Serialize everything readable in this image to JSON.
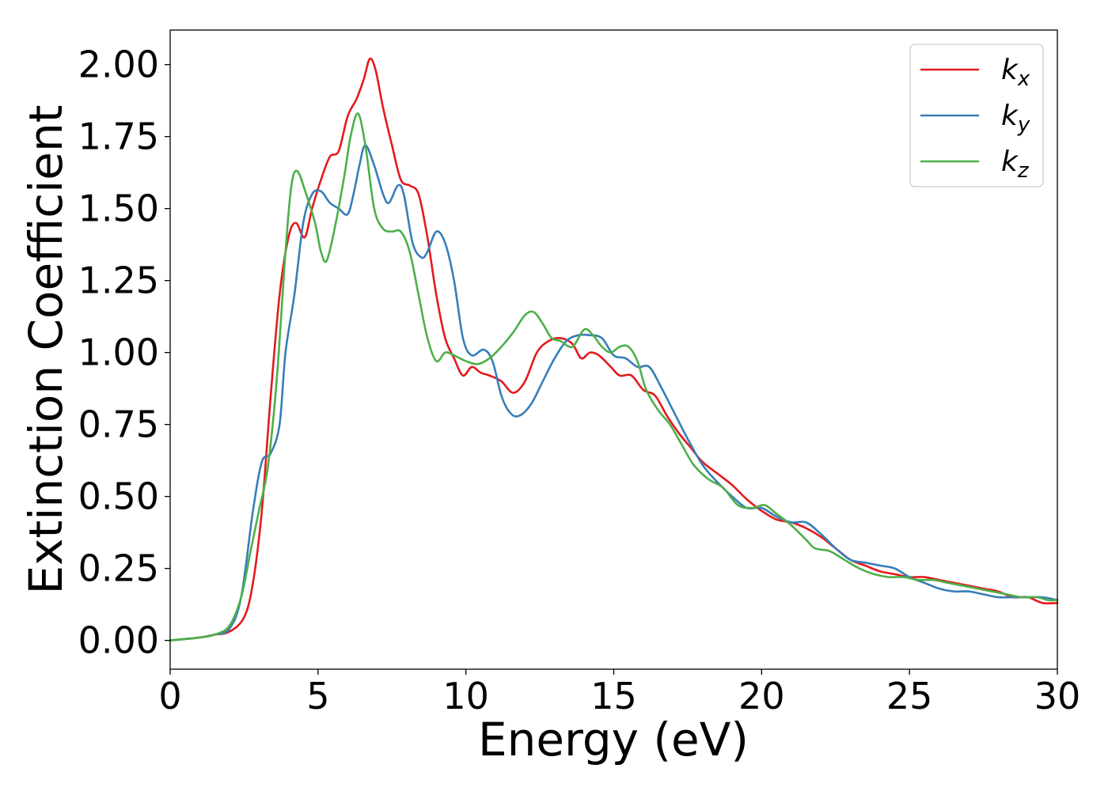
{
  "chart_data": {
    "type": "line",
    "title": "",
    "xlabel": "Energy (eV)",
    "ylabel": "Extinction Coefficient",
    "xlim": [
      0,
      30
    ],
    "ylim": [
      -0.1,
      2.12
    ],
    "x_ticks": [
      0,
      5,
      10,
      15,
      20,
      25,
      30
    ],
    "x_tick_labels": [
      "0",
      "5",
      "10",
      "15",
      "20",
      "25",
      "30"
    ],
    "y_ticks": [
      0,
      0.25,
      0.5,
      0.75,
      1.0,
      1.25,
      1.5,
      1.75,
      2.0
    ],
    "y_tick_labels": [
      "0.00",
      "0.25",
      "0.50",
      "0.75",
      "1.00",
      "1.25",
      "1.50",
      "1.75",
      "2.00"
    ],
    "grid": false,
    "legend_position": "top-right",
    "series": [
      {
        "name": "k",
        "name_sub": "x",
        "color": "#e41a1c",
        "points": [
          [
            0,
            0
          ],
          [
            1,
            0.01
          ],
          [
            1.5,
            0.02
          ],
          [
            2,
            0.03
          ],
          [
            2.5,
            0.08
          ],
          [
            2.8,
            0.2
          ],
          [
            3.1,
            0.45
          ],
          [
            3.4,
            0.85
          ],
          [
            3.7,
            1.2
          ],
          [
            4,
            1.4
          ],
          [
            4.25,
            1.45
          ],
          [
            4.55,
            1.4
          ],
          [
            4.8,
            1.5
          ],
          [
            5.1,
            1.6
          ],
          [
            5.4,
            1.68
          ],
          [
            5.7,
            1.7
          ],
          [
            6,
            1.82
          ],
          [
            6.3,
            1.88
          ],
          [
            6.55,
            1.95
          ],
          [
            6.75,
            2.02
          ],
          [
            6.95,
            1.98
          ],
          [
            7.2,
            1.85
          ],
          [
            7.5,
            1.72
          ],
          [
            7.8,
            1.6
          ],
          [
            8.1,
            1.58
          ],
          [
            8.4,
            1.55
          ],
          [
            8.7,
            1.4
          ],
          [
            9,
            1.2
          ],
          [
            9.3,
            1.05
          ],
          [
            9.6,
            0.98
          ],
          [
            9.9,
            0.92
          ],
          [
            10.2,
            0.95
          ],
          [
            10.5,
            0.93
          ],
          [
            10.8,
            0.92
          ],
          [
            11.2,
            0.9
          ],
          [
            11.6,
            0.86
          ],
          [
            12,
            0.9
          ],
          [
            12.4,
            1.0
          ],
          [
            12.8,
            1.04
          ],
          [
            13.2,
            1.05
          ],
          [
            13.6,
            1.03
          ],
          [
            13.9,
            0.98
          ],
          [
            14.2,
            1.0
          ],
          [
            14.5,
            0.99
          ],
          [
            14.9,
            0.95
          ],
          [
            15.2,
            0.92
          ],
          [
            15.6,
            0.92
          ],
          [
            16,
            0.87
          ],
          [
            16.4,
            0.85
          ],
          [
            16.8,
            0.78
          ],
          [
            17.2,
            0.72
          ],
          [
            17.6,
            0.67
          ],
          [
            18,
            0.62
          ],
          [
            18.5,
            0.58
          ],
          [
            19,
            0.54
          ],
          [
            19.5,
            0.49
          ],
          [
            20,
            0.45
          ],
          [
            20.5,
            0.42
          ],
          [
            21,
            0.41
          ],
          [
            21.5,
            0.39
          ],
          [
            22,
            0.36
          ],
          [
            22.5,
            0.32
          ],
          [
            23,
            0.28
          ],
          [
            23.5,
            0.26
          ],
          [
            24,
            0.24
          ],
          [
            24.5,
            0.23
          ],
          [
            25,
            0.22
          ],
          [
            25.5,
            0.22
          ],
          [
            26,
            0.21
          ],
          [
            26.5,
            0.2
          ],
          [
            27,
            0.19
          ],
          [
            27.5,
            0.18
          ],
          [
            28,
            0.17
          ],
          [
            28.5,
            0.15
          ],
          [
            29,
            0.15
          ],
          [
            29.5,
            0.13
          ],
          [
            30,
            0.13
          ]
        ]
      },
      {
        "name": "k",
        "name_sub": "y",
        "color": "#377eb8",
        "points": [
          [
            0,
            0
          ],
          [
            1,
            0.01
          ],
          [
            1.5,
            0.02
          ],
          [
            2,
            0.04
          ],
          [
            2.4,
            0.15
          ],
          [
            2.8,
            0.45
          ],
          [
            3.1,
            0.62
          ],
          [
            3.4,
            0.65
          ],
          [
            3.7,
            0.75
          ],
          [
            3.9,
            1.0
          ],
          [
            4.2,
            1.2
          ],
          [
            4.5,
            1.45
          ],
          [
            4.8,
            1.55
          ],
          [
            5.1,
            1.56
          ],
          [
            5.4,
            1.52
          ],
          [
            5.7,
            1.5
          ],
          [
            6,
            1.48
          ],
          [
            6.2,
            1.55
          ],
          [
            6.4,
            1.65
          ],
          [
            6.6,
            1.72
          ],
          [
            6.9,
            1.65
          ],
          [
            7.2,
            1.55
          ],
          [
            7.4,
            1.52
          ],
          [
            7.7,
            1.58
          ],
          [
            7.9,
            1.55
          ],
          [
            8.2,
            1.38
          ],
          [
            8.5,
            1.33
          ],
          [
            8.7,
            1.35
          ],
          [
            9,
            1.42
          ],
          [
            9.3,
            1.38
          ],
          [
            9.6,
            1.25
          ],
          [
            9.9,
            1.05
          ],
          [
            10.2,
            0.99
          ],
          [
            10.6,
            1.01
          ],
          [
            10.9,
            0.97
          ],
          [
            11.2,
            0.85
          ],
          [
            11.5,
            0.79
          ],
          [
            11.8,
            0.78
          ],
          [
            12.2,
            0.82
          ],
          [
            12.6,
            0.9
          ],
          [
            13,
            0.98
          ],
          [
            13.4,
            1.04
          ],
          [
            13.8,
            1.06
          ],
          [
            14.2,
            1.06
          ],
          [
            14.6,
            1.05
          ],
          [
            15,
            0.99
          ],
          [
            15.4,
            0.98
          ],
          [
            15.8,
            0.95
          ],
          [
            16.2,
            0.95
          ],
          [
            16.6,
            0.88
          ],
          [
            17,
            0.8
          ],
          [
            17.5,
            0.7
          ],
          [
            18,
            0.61
          ],
          [
            18.5,
            0.55
          ],
          [
            19,
            0.5
          ],
          [
            19.5,
            0.46
          ],
          [
            20,
            0.46
          ],
          [
            20.5,
            0.43
          ],
          [
            21,
            0.41
          ],
          [
            21.5,
            0.41
          ],
          [
            22,
            0.37
          ],
          [
            22.5,
            0.32
          ],
          [
            23,
            0.28
          ],
          [
            23.5,
            0.27
          ],
          [
            24,
            0.26
          ],
          [
            24.5,
            0.25
          ],
          [
            25,
            0.22
          ],
          [
            25.5,
            0.2
          ],
          [
            26,
            0.18
          ],
          [
            26.5,
            0.17
          ],
          [
            27,
            0.17
          ],
          [
            27.5,
            0.16
          ],
          [
            28,
            0.15
          ],
          [
            28.5,
            0.15
          ],
          [
            29,
            0.15
          ],
          [
            29.5,
            0.15
          ],
          [
            30,
            0.14
          ]
        ]
      },
      {
        "name": "k",
        "name_sub": "z",
        "color": "#4daf4a",
        "points": [
          [
            0,
            0
          ],
          [
            1,
            0.01
          ],
          [
            1.5,
            0.02
          ],
          [
            2,
            0.05
          ],
          [
            2.4,
            0.15
          ],
          [
            2.7,
            0.3
          ],
          [
            3,
            0.45
          ],
          [
            3.3,
            0.6
          ],
          [
            3.6,
            0.9
          ],
          [
            3.9,
            1.35
          ],
          [
            4.1,
            1.58
          ],
          [
            4.3,
            1.63
          ],
          [
            4.6,
            1.55
          ],
          [
            4.9,
            1.45
          ],
          [
            5.1,
            1.35
          ],
          [
            5.3,
            1.32
          ],
          [
            5.6,
            1.45
          ],
          [
            5.9,
            1.62
          ],
          [
            6.1,
            1.75
          ],
          [
            6.35,
            1.83
          ],
          [
            6.6,
            1.72
          ],
          [
            6.9,
            1.5
          ],
          [
            7.2,
            1.43
          ],
          [
            7.5,
            1.42
          ],
          [
            7.8,
            1.42
          ],
          [
            8.1,
            1.35
          ],
          [
            8.4,
            1.2
          ],
          [
            8.7,
            1.05
          ],
          [
            9,
            0.97
          ],
          [
            9.3,
            1.0
          ],
          [
            9.6,
            0.99
          ],
          [
            10,
            0.97
          ],
          [
            10.4,
            0.96
          ],
          [
            10.8,
            0.98
          ],
          [
            11.2,
            1.02
          ],
          [
            11.6,
            1.07
          ],
          [
            12,
            1.13
          ],
          [
            12.3,
            1.14
          ],
          [
            12.6,
            1.1
          ],
          [
            12.9,
            1.05
          ],
          [
            13.2,
            1.04
          ],
          [
            13.6,
            1.02
          ],
          [
            14,
            1.08
          ],
          [
            14.3,
            1.06
          ],
          [
            14.6,
            1.02
          ],
          [
            14.9,
            1.0
          ],
          [
            15.2,
            1.02
          ],
          [
            15.5,
            1.02
          ],
          [
            15.8,
            0.97
          ],
          [
            16.1,
            0.87
          ],
          [
            16.5,
            0.8
          ],
          [
            16.9,
            0.75
          ],
          [
            17.3,
            0.68
          ],
          [
            17.7,
            0.61
          ],
          [
            18.2,
            0.56
          ],
          [
            18.7,
            0.53
          ],
          [
            19.2,
            0.47
          ],
          [
            19.7,
            0.46
          ],
          [
            20.1,
            0.47
          ],
          [
            20.5,
            0.44
          ],
          [
            21,
            0.4
          ],
          [
            21.5,
            0.35
          ],
          [
            21.8,
            0.32
          ],
          [
            22.3,
            0.31
          ],
          [
            22.8,
            0.28
          ],
          [
            23.3,
            0.25
          ],
          [
            23.8,
            0.23
          ],
          [
            24.3,
            0.22
          ],
          [
            24.8,
            0.22
          ],
          [
            25.3,
            0.21
          ],
          [
            25.8,
            0.21
          ],
          [
            26.3,
            0.2
          ],
          [
            26.8,
            0.19
          ],
          [
            27.3,
            0.18
          ],
          [
            27.8,
            0.17
          ],
          [
            28.3,
            0.16
          ],
          [
            28.8,
            0.15
          ],
          [
            29.3,
            0.15
          ],
          [
            29.7,
            0.14
          ],
          [
            30,
            0.14
          ]
        ]
      }
    ]
  }
}
